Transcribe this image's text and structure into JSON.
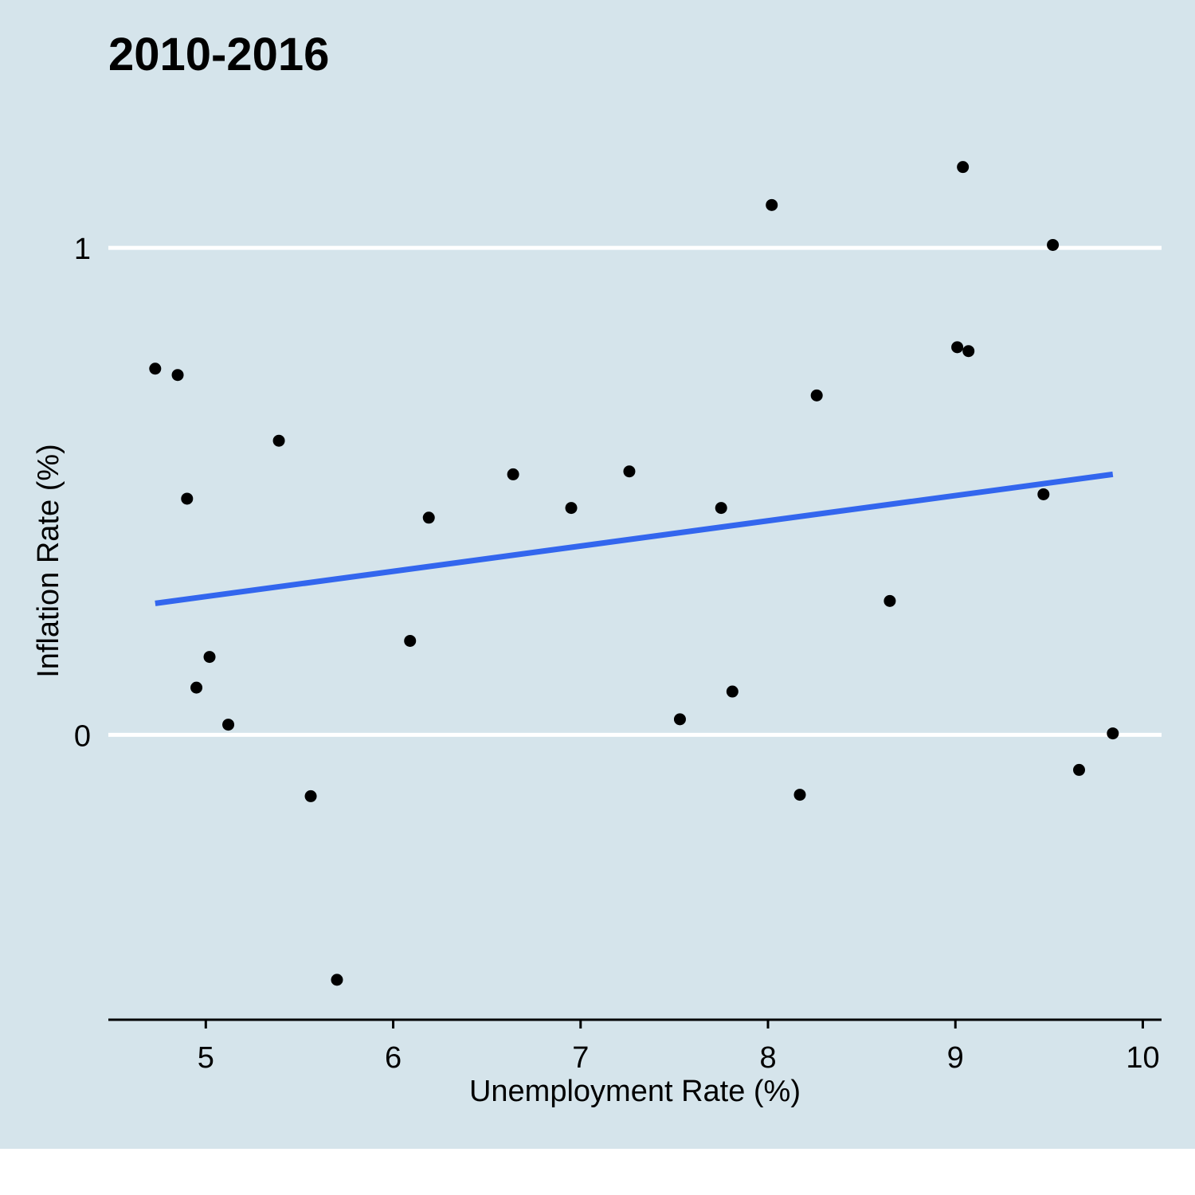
{
  "chart_data": {
    "type": "scatter",
    "title": "2010-2016",
    "xlabel": "Unemployment Rate (%)",
    "ylabel": "Inflation Rate (%)",
    "xlim": [
      4.48,
      10.1
    ],
    "ylim": [
      -0.585,
      1.28
    ],
    "x_ticks": [
      "5",
      "6",
      "7",
      "8",
      "9",
      "10"
    ],
    "y_ticks": [
      "0",
      "1"
    ],
    "grid": "horizontal-major",
    "colors": {
      "background": "#d5e4eb",
      "points": "#000000",
      "trend": "#3366ee",
      "grid": "#ffffff"
    },
    "points": [
      {
        "x": 4.73,
        "y": 0.752
      },
      {
        "x": 4.85,
        "y": 0.739
      },
      {
        "x": 4.9,
        "y": 0.485
      },
      {
        "x": 4.95,
        "y": 0.097
      },
      {
        "x": 5.02,
        "y": 0.16
      },
      {
        "x": 5.12,
        "y": 0.021
      },
      {
        "x": 5.39,
        "y": 0.604
      },
      {
        "x": 5.56,
        "y": -0.126
      },
      {
        "x": 5.7,
        "y": -0.503
      },
      {
        "x": 6.09,
        "y": 0.193
      },
      {
        "x": 6.19,
        "y": 0.446
      },
      {
        "x": 6.64,
        "y": 0.535
      },
      {
        "x": 6.95,
        "y": 0.466
      },
      {
        "x": 7.26,
        "y": 0.541
      },
      {
        "x": 7.53,
        "y": 0.032
      },
      {
        "x": 7.75,
        "y": 0.466
      },
      {
        "x": 7.81,
        "y": 0.089
      },
      {
        "x": 8.02,
        "y": 1.088
      },
      {
        "x": 8.17,
        "y": -0.123
      },
      {
        "x": 8.26,
        "y": 0.697
      },
      {
        "x": 8.65,
        "y": 0.275
      },
      {
        "x": 9.01,
        "y": 0.796
      },
      {
        "x": 9.04,
        "y": 1.166
      },
      {
        "x": 9.07,
        "y": 0.788
      },
      {
        "x": 9.47,
        "y": 0.494
      },
      {
        "x": 9.52,
        "y": 1.006
      },
      {
        "x": 9.66,
        "y": -0.072
      },
      {
        "x": 9.84,
        "y": 0.003
      }
    ],
    "trend_line": {
      "x": [
        4.73,
        9.84
      ],
      "y": [
        0.27,
        0.535
      ]
    }
  }
}
